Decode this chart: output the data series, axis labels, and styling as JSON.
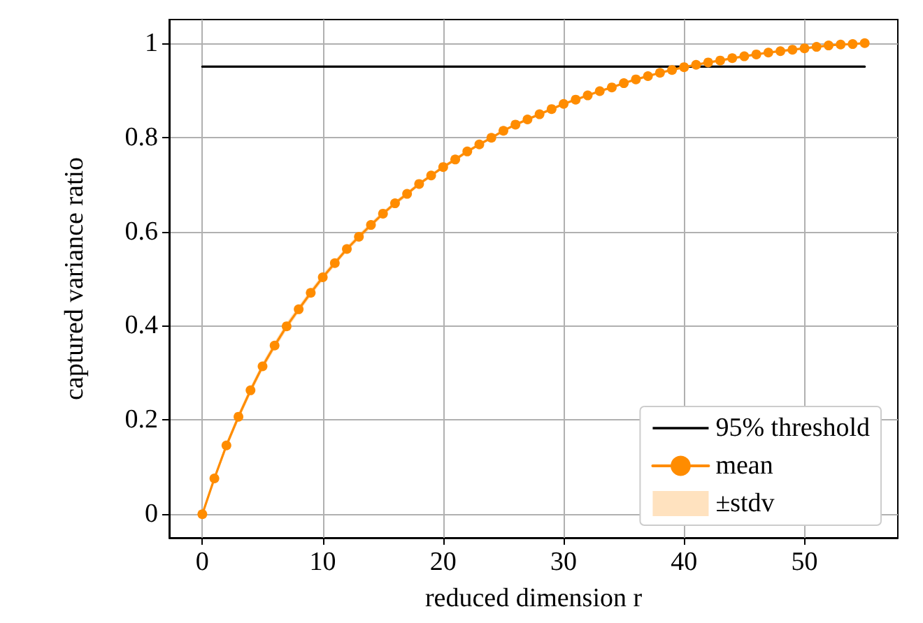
{
  "chart_data": {
    "type": "line",
    "xlabel": "reduced dimension r",
    "ylabel": "captured variance ratio",
    "x": [
      0,
      1,
      2,
      3,
      4,
      5,
      6,
      7,
      8,
      9,
      10,
      11,
      12,
      13,
      14,
      15,
      16,
      17,
      18,
      19,
      20,
      21,
      22,
      23,
      24,
      25,
      26,
      27,
      28,
      29,
      30,
      31,
      32,
      33,
      34,
      35,
      36,
      37,
      38,
      39,
      40,
      41,
      42,
      43,
      44,
      45,
      46,
      47,
      48,
      49,
      50,
      51,
      52,
      53,
      54,
      55
    ],
    "series": [
      {
        "name": "95% threshold",
        "color": "#000000",
        "marker": "none",
        "x": [
          0,
          55
        ],
        "values": [
          0.95,
          0.95
        ]
      },
      {
        "name": "mean",
        "color": "#ff8c00",
        "marker": "circle",
        "values": [
          0,
          0.076,
          0.146,
          0.207,
          0.263,
          0.314,
          0.358,
          0.399,
          0.435,
          0.47,
          0.503,
          0.533,
          0.563,
          0.589,
          0.614,
          0.638,
          0.66,
          0.68,
          0.701,
          0.719,
          0.737,
          0.753,
          0.77,
          0.785,
          0.799,
          0.814,
          0.827,
          0.838,
          0.849,
          0.86,
          0.871,
          0.88,
          0.889,
          0.898,
          0.906,
          0.915,
          0.923,
          0.93,
          0.937,
          0.943,
          0.949,
          0.954,
          0.959,
          0.963,
          0.968,
          0.972,
          0.976,
          0.98,
          0.983,
          0.986,
          0.989,
          0.992,
          0.995,
          0.997,
          0.998,
          1.0
        ],
        "lower": [
          0,
          0.07,
          0.139,
          0.199,
          0.255,
          0.306,
          0.35,
          0.391,
          0.428,
          0.463,
          0.496,
          0.527,
          0.557,
          0.583,
          0.608,
          0.633,
          0.655,
          0.675,
          0.697,
          0.715,
          0.733,
          0.749,
          0.766,
          0.782,
          0.796,
          0.811,
          0.824,
          0.835,
          0.846,
          0.857,
          0.868,
          0.878,
          0.887,
          0.896,
          0.904,
          0.913,
          0.921,
          0.928,
          0.935,
          0.941,
          0.947,
          0.952,
          0.957,
          0.961,
          0.966,
          0.97,
          0.974,
          0.978,
          0.981,
          0.984,
          0.987,
          0.99,
          0.993,
          0.995,
          0.996,
          0.998
        ],
        "upper": [
          0,
          0.082,
          0.153,
          0.215,
          0.271,
          0.322,
          0.366,
          0.407,
          0.442,
          0.477,
          0.51,
          0.539,
          0.569,
          0.595,
          0.62,
          0.643,
          0.665,
          0.685,
          0.705,
          0.723,
          0.741,
          0.757,
          0.774,
          0.788,
          0.802,
          0.817,
          0.83,
          0.841,
          0.852,
          0.863,
          0.874,
          0.882,
          0.891,
          0.9,
          0.908,
          0.917,
          0.925,
          0.932,
          0.939,
          0.945,
          0.951,
          0.956,
          0.961,
          0.965,
          0.97,
          0.974,
          0.978,
          0.982,
          0.985,
          0.988,
          0.991,
          0.994,
          0.997,
          0.999,
          1.0,
          1.0
        ]
      }
    ],
    "xlim": [
      -2.75,
      57.75
    ],
    "xticks": [
      0,
      10,
      20,
      30,
      40,
      50
    ],
    "ylim": [
      -0.05,
      1.05
    ],
    "yticks": [
      0,
      0.2,
      0.4,
      0.6,
      0.8,
      1
    ],
    "annotations": [
      "±stdv"
    ],
    "grid": true,
    "legend": "bottom right"
  }
}
